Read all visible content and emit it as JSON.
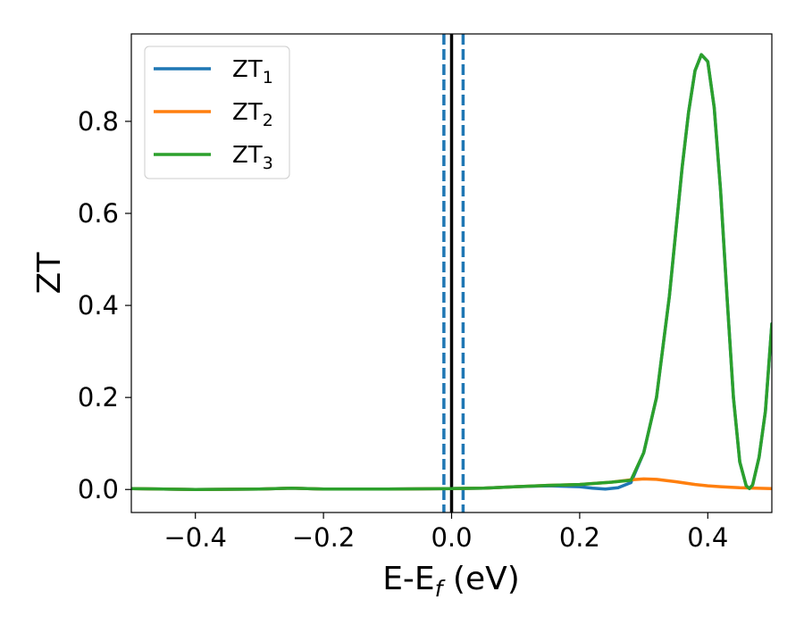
{
  "chart_data": {
    "type": "line",
    "title": "",
    "xlabel": "E-E",
    "xlabel_subscript": "f",
    "xlabel_unit": " (eV)",
    "ylabel": "ZT",
    "xlim": [
      -0.5,
      0.5
    ],
    "ylim": [
      -0.05,
      0.99
    ],
    "xticks": [
      -0.4,
      -0.2,
      0.0,
      0.2,
      0.4
    ],
    "xtick_labels": [
      "−0.4",
      "−0.2",
      "0.0",
      "0.2",
      "0.4"
    ],
    "yticks": [
      0.0,
      0.2,
      0.4,
      0.6,
      0.8
    ],
    "ytick_labels": [
      "0.0",
      "0.2",
      "0.4",
      "0.6",
      "0.8"
    ],
    "grid": false,
    "legend_position": "upper-left",
    "vertical_lines": [
      {
        "x": 0.0,
        "style": "solid",
        "color": "#000000"
      },
      {
        "x": -0.012,
        "style": "dashed",
        "color": "#1f77b4"
      },
      {
        "x": 0.018,
        "style": "dashed",
        "color": "#1f77b4"
      }
    ],
    "series": [
      {
        "name": "ZT",
        "subscript": "1",
        "color": "#1f77b4",
        "x": [
          -0.5,
          -0.4,
          -0.3,
          -0.25,
          -0.2,
          -0.1,
          0.0,
          0.05,
          0.1,
          0.15,
          0.2,
          0.22,
          0.24,
          0.26,
          0.28,
          0.3,
          0.32,
          0.34,
          0.36,
          0.37,
          0.38,
          0.39,
          0.4,
          0.41,
          0.42,
          0.43,
          0.44,
          0.45,
          0.46,
          0.465,
          0.47,
          0.48,
          0.49,
          0.5
        ],
        "y": [
          0.002,
          0.0,
          0.001,
          0.003,
          0.001,
          0.001,
          0.002,
          0.003,
          0.006,
          0.008,
          0.006,
          0.003,
          0.001,
          0.004,
          0.015,
          0.08,
          0.2,
          0.42,
          0.7,
          0.82,
          0.91,
          0.945,
          0.93,
          0.83,
          0.65,
          0.42,
          0.2,
          0.06,
          0.008,
          0.002,
          0.01,
          0.07,
          0.17,
          0.36
        ]
      },
      {
        "name": "ZT",
        "subscript": "2",
        "color": "#ff7f0e",
        "x": [
          -0.5,
          -0.4,
          -0.3,
          -0.25,
          -0.2,
          -0.1,
          0.0,
          0.05,
          0.1,
          0.15,
          0.2,
          0.25,
          0.28,
          0.3,
          0.32,
          0.35,
          0.38,
          0.4,
          0.42,
          0.45,
          0.5
        ],
        "y": [
          0.002,
          0.0,
          0.001,
          0.003,
          0.001,
          0.001,
          0.002,
          0.003,
          0.006,
          0.009,
          0.011,
          0.016,
          0.021,
          0.023,
          0.022,
          0.017,
          0.011,
          0.008,
          0.006,
          0.004,
          0.002
        ]
      },
      {
        "name": "ZT",
        "subscript": "3",
        "color": "#2ca02c",
        "x": [
          -0.5,
          -0.4,
          -0.3,
          -0.25,
          -0.2,
          -0.1,
          0.0,
          0.05,
          0.1,
          0.15,
          0.2,
          0.25,
          0.28,
          0.3,
          0.32,
          0.34,
          0.36,
          0.37,
          0.38,
          0.39,
          0.4,
          0.41,
          0.42,
          0.43,
          0.44,
          0.45,
          0.46,
          0.465,
          0.47,
          0.48,
          0.49,
          0.5
        ],
        "y": [
          0.002,
          0.0,
          0.001,
          0.003,
          0.001,
          0.001,
          0.002,
          0.003,
          0.006,
          0.009,
          0.011,
          0.016,
          0.02,
          0.08,
          0.2,
          0.42,
          0.7,
          0.82,
          0.91,
          0.945,
          0.93,
          0.83,
          0.65,
          0.42,
          0.2,
          0.06,
          0.008,
          0.002,
          0.01,
          0.07,
          0.17,
          0.36
        ]
      }
    ]
  }
}
